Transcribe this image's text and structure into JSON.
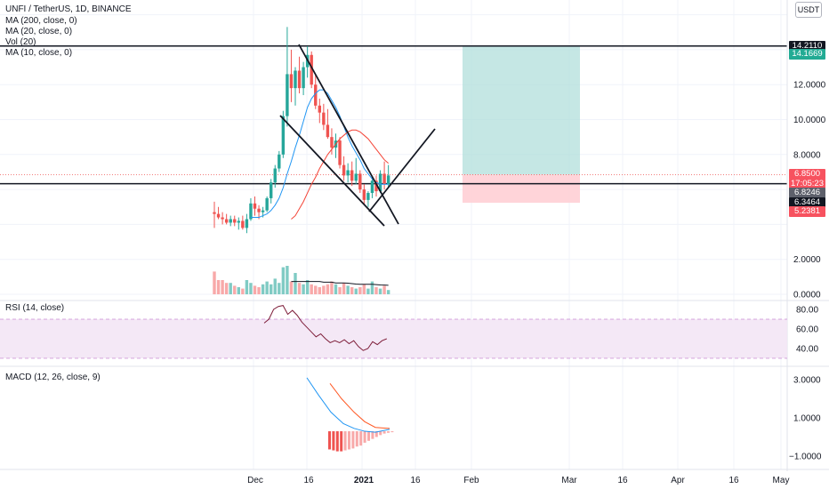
{
  "header": {
    "symbol_line": "UNFI / TetherUS, 1D, BINANCE",
    "indicators": [
      "MA (200, close, 0)",
      "MA (20, close, 0)",
      "Vol (20)",
      "MA (10, close, 0)"
    ]
  },
  "currency": "USDT",
  "price_axis": [
    {
      "v": 12,
      "label": "12.0000"
    },
    {
      "v": 10,
      "label": "10.0000"
    },
    {
      "v": 8,
      "label": "8.0000"
    },
    {
      "v": 2,
      "label": "2.0000"
    },
    {
      "v": 0,
      "label": "0.0000"
    }
  ],
  "price_tags": [
    {
      "label": "14.2110",
      "bg": "#131722",
      "v": 14.211
    },
    {
      "label": "14.1669",
      "bg": "#22ab94",
      "v": 13.75
    },
    {
      "label": "6.8500",
      "bg": "#f7525f",
      "v": 6.85
    },
    {
      "label": "17:05:23",
      "bg": "#f7525f",
      "v": 6.33
    },
    {
      "label": "6.8246",
      "bg": "#5d606b",
      "v": 5.8
    },
    {
      "label": "6.3464",
      "bg": "#131722",
      "v": 5.25
    },
    {
      "label": "5.2381",
      "bg": "#f7525f",
      "v": 4.72
    }
  ],
  "rsi": {
    "label": "RSI (14, close)",
    "axis": [
      {
        "v": 80,
        "label": "80.00"
      },
      {
        "v": 60,
        "label": "60.00"
      },
      {
        "v": 40,
        "label": "40.00"
      }
    ],
    "values": [
      66,
      70,
      80,
      83,
      84,
      75,
      79,
      74,
      67,
      62,
      57,
      52,
      55,
      50,
      46,
      48,
      46,
      49,
      45,
      48,
      42,
      38,
      40,
      47,
      44,
      48,
      50
    ]
  },
  "macd": {
    "label": "MACD (12, 26, close, 9)",
    "axis": [
      {
        "v": 3,
        "label": "3.0000"
      },
      {
        "v": 1,
        "label": "1.0000"
      },
      {
        "v": -1,
        "label": "−1.0000"
      }
    ]
  },
  "time_axis": [
    "Dec",
    "16",
    "2021",
    "16",
    "Feb",
    "Mar",
    "16",
    "Apr",
    "16",
    "May"
  ],
  "colors": {
    "up": "#26a69a",
    "down": "#ef5350",
    "ma_red": "#f44336",
    "ma_blue": "#2196f3",
    "rsi_line": "#7e1e3a",
    "rsi_band": "#9c27b0",
    "target_zone": "#b2dfdb",
    "stop_zone": "#ffcdd2"
  },
  "chart_data": {
    "type": "candlestick",
    "ohlc": [
      [
        4.7,
        5.3,
        3.8,
        4.6
      ],
      [
        4.6,
        5.0,
        4.3,
        4.4
      ],
      [
        4.4,
        4.7,
        4.0,
        4.3
      ],
      [
        4.3,
        4.6,
        4.0,
        4.1
      ],
      [
        4.1,
        4.5,
        3.9,
        4.3
      ],
      [
        4.3,
        4.5,
        3.9,
        4.1
      ],
      [
        4.1,
        4.4,
        3.7,
        4.2
      ],
      [
        4.2,
        4.5,
        3.7,
        3.8
      ],
      [
        3.8,
        4.6,
        3.5,
        4.3
      ],
      [
        4.3,
        5.5,
        4.2,
        5.2
      ],
      [
        5.2,
        5.6,
        4.5,
        4.9
      ],
      [
        4.9,
        5.1,
        4.3,
        4.7
      ],
      [
        4.7,
        5.0,
        4.4,
        4.8
      ],
      [
        4.8,
        5.6,
        4.7,
        5.5
      ],
      [
        5.5,
        6.6,
        5.2,
        6.4
      ],
      [
        6.4,
        7.4,
        6.1,
        7.2
      ],
      [
        7.2,
        8.2,
        7.0,
        8.0
      ],
      [
        8.0,
        10.5,
        7.8,
        10.2
      ],
      [
        10.2,
        15.3,
        9.6,
        12.6
      ],
      [
        12.6,
        14.0,
        11.0,
        11.8
      ],
      [
        11.8,
        13.0,
        10.8,
        12.8
      ],
      [
        12.8,
        13.6,
        11.5,
        11.8
      ],
      [
        11.8,
        13.3,
        11.4,
        13.0
      ],
      [
        13.0,
        14.2,
        12.4,
        13.7
      ],
      [
        13.7,
        13.9,
        11.8,
        12.0
      ],
      [
        12.0,
        12.6,
        10.6,
        10.8
      ],
      [
        10.8,
        11.2,
        9.8,
        10.4
      ],
      [
        10.4,
        10.9,
        9.4,
        9.7
      ],
      [
        9.7,
        10.6,
        8.9,
        9.0
      ],
      [
        9.0,
        9.5,
        8.0,
        8.4
      ],
      [
        8.4,
        9.2,
        7.8,
        8.8
      ],
      [
        8.8,
        9.0,
        7.2,
        7.4
      ],
      [
        7.4,
        7.9,
        6.5,
        6.8
      ],
      [
        6.8,
        7.5,
        6.4,
        7.1
      ],
      [
        7.1,
        7.6,
        6.2,
        6.5
      ],
      [
        6.5,
        7.8,
        6.3,
        6.9
      ],
      [
        6.9,
        7.1,
        5.8,
        6.0
      ],
      [
        6.0,
        6.3,
        5.1,
        5.4
      ],
      [
        5.4,
        5.9,
        5.0,
        5.8
      ],
      [
        5.8,
        6.7,
        5.5,
        6.5
      ],
      [
        6.5,
        6.8,
        5.6,
        5.9
      ],
      [
        5.9,
        7.1,
        5.8,
        6.9
      ],
      [
        6.9,
        7.6,
        6.0,
        6.3
      ],
      [
        6.3,
        7.4,
        6.1,
        6.8
      ]
    ],
    "volume": [
      1.6,
      1.0,
      1.0,
      0.8,
      0.8,
      0.6,
      0.5,
      0.4,
      1.0,
      0.8,
      0.6,
      0.5,
      0.7,
      0.9,
      0.7,
      1.1,
      0.8,
      1.9,
      2.0,
      0.9,
      1.5,
      0.8,
      0.7,
      1.0,
      0.7,
      0.6,
      0.5,
      0.6,
      0.7,
      0.9,
      0.7,
      0.5,
      0.8,
      0.6,
      0.5,
      0.4,
      0.5,
      0.7,
      0.4,
      0.9,
      0.5,
      0.4,
      0.6,
      0.3
    ],
    "ma_fast": [
      null,
      null,
      null,
      null,
      null,
      null,
      null,
      null,
      null,
      4.4,
      4.4,
      4.4,
      4.5,
      4.6,
      4.8,
      5.1,
      5.5,
      6.1,
      6.9,
      7.6,
      8.4,
      9.1,
      9.9,
      10.7,
      11.2,
      11.5,
      11.7,
      11.7,
      11.5,
      11.1,
      10.7,
      10.2,
      9.6,
      9.0,
      8.5,
      8.1,
      7.7,
      7.2,
      6.9,
      6.6,
      6.4,
      6.3,
      6.3,
      6.3
    ],
    "ma_slow": [
      null,
      null,
      null,
      null,
      null,
      null,
      null,
      null,
      null,
      null,
      null,
      null,
      null,
      null,
      null,
      null,
      null,
      null,
      null,
      4.3,
      4.5,
      4.9,
      5.3,
      5.8,
      6.3,
      6.7,
      7.2,
      7.6,
      8.0,
      8.3,
      8.6,
      8.9,
      9.1,
      9.3,
      9.4,
      9.4,
      9.3,
      9.1,
      8.9,
      8.6,
      8.3,
      8.0,
      7.7,
      7.5
    ],
    "vol_ma": [
      null,
      null,
      null,
      null,
      null,
      null,
      null,
      null,
      null,
      null,
      null,
      null,
      null,
      null,
      null,
      null,
      null,
      null,
      null,
      0.9,
      0.9,
      0.9,
      0.9,
      0.9,
      0.9,
      0.9,
      0.9,
      0.85,
      0.85,
      0.85,
      0.8,
      0.8,
      0.8,
      0.78,
      0.75,
      0.72,
      0.7,
      0.7,
      0.7,
      0.7,
      0.68,
      0.66,
      0.65,
      0.63
    ],
    "ylim": [
      0,
      16.8
    ]
  }
}
